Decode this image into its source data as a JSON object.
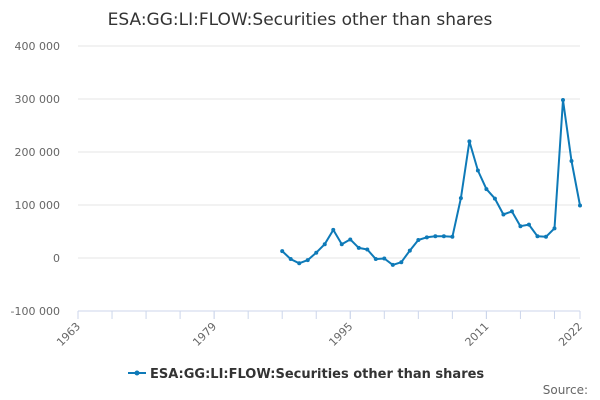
{
  "chart_data": {
    "type": "line",
    "title": "ESA:GG:LI:FLOW:Securities other than shares",
    "xlabel": "",
    "ylabel": "",
    "x_ticks": [
      "1963",
      "1979",
      "1995",
      "2011",
      "2022"
    ],
    "y_ticks": [
      "-100 000",
      "0",
      "100 000",
      "200 000",
      "300 000",
      "400 000"
    ],
    "xlim": [
      1963,
      2022
    ],
    "ylim": [
      -100000,
      400000
    ],
    "grid": true,
    "legend_position": "bottom",
    "series": [
      {
        "name": "ESA:GG:LI:FLOW:Securities other than shares",
        "color": "#0e7ab8",
        "x": [
          1987,
          1988,
          1989,
          1990,
          1991,
          1992,
          1993,
          1994,
          1995,
          1996,
          1997,
          1998,
          1999,
          2000,
          2001,
          2002,
          2003,
          2004,
          2005,
          2006,
          2007,
          2008,
          2009,
          2010,
          2011,
          2012,
          2013,
          2014,
          2015,
          2016,
          2017,
          2018,
          2019,
          2020,
          2021,
          2022
        ],
        "values": [
          13000,
          -2000,
          -10000,
          -4000,
          10000,
          26000,
          53000,
          26000,
          35000,
          19000,
          16000,
          -2000,
          -1000,
          -13000,
          -8000,
          14000,
          34000,
          39000,
          41000,
          41000,
          40000,
          113000,
          220000,
          165000,
          130000,
          112000,
          82000,
          88000,
          60000,
          63000,
          41000,
          40000,
          56000,
          298000,
          183000,
          99000
        ]
      }
    ]
  },
  "source_label": "Source:"
}
